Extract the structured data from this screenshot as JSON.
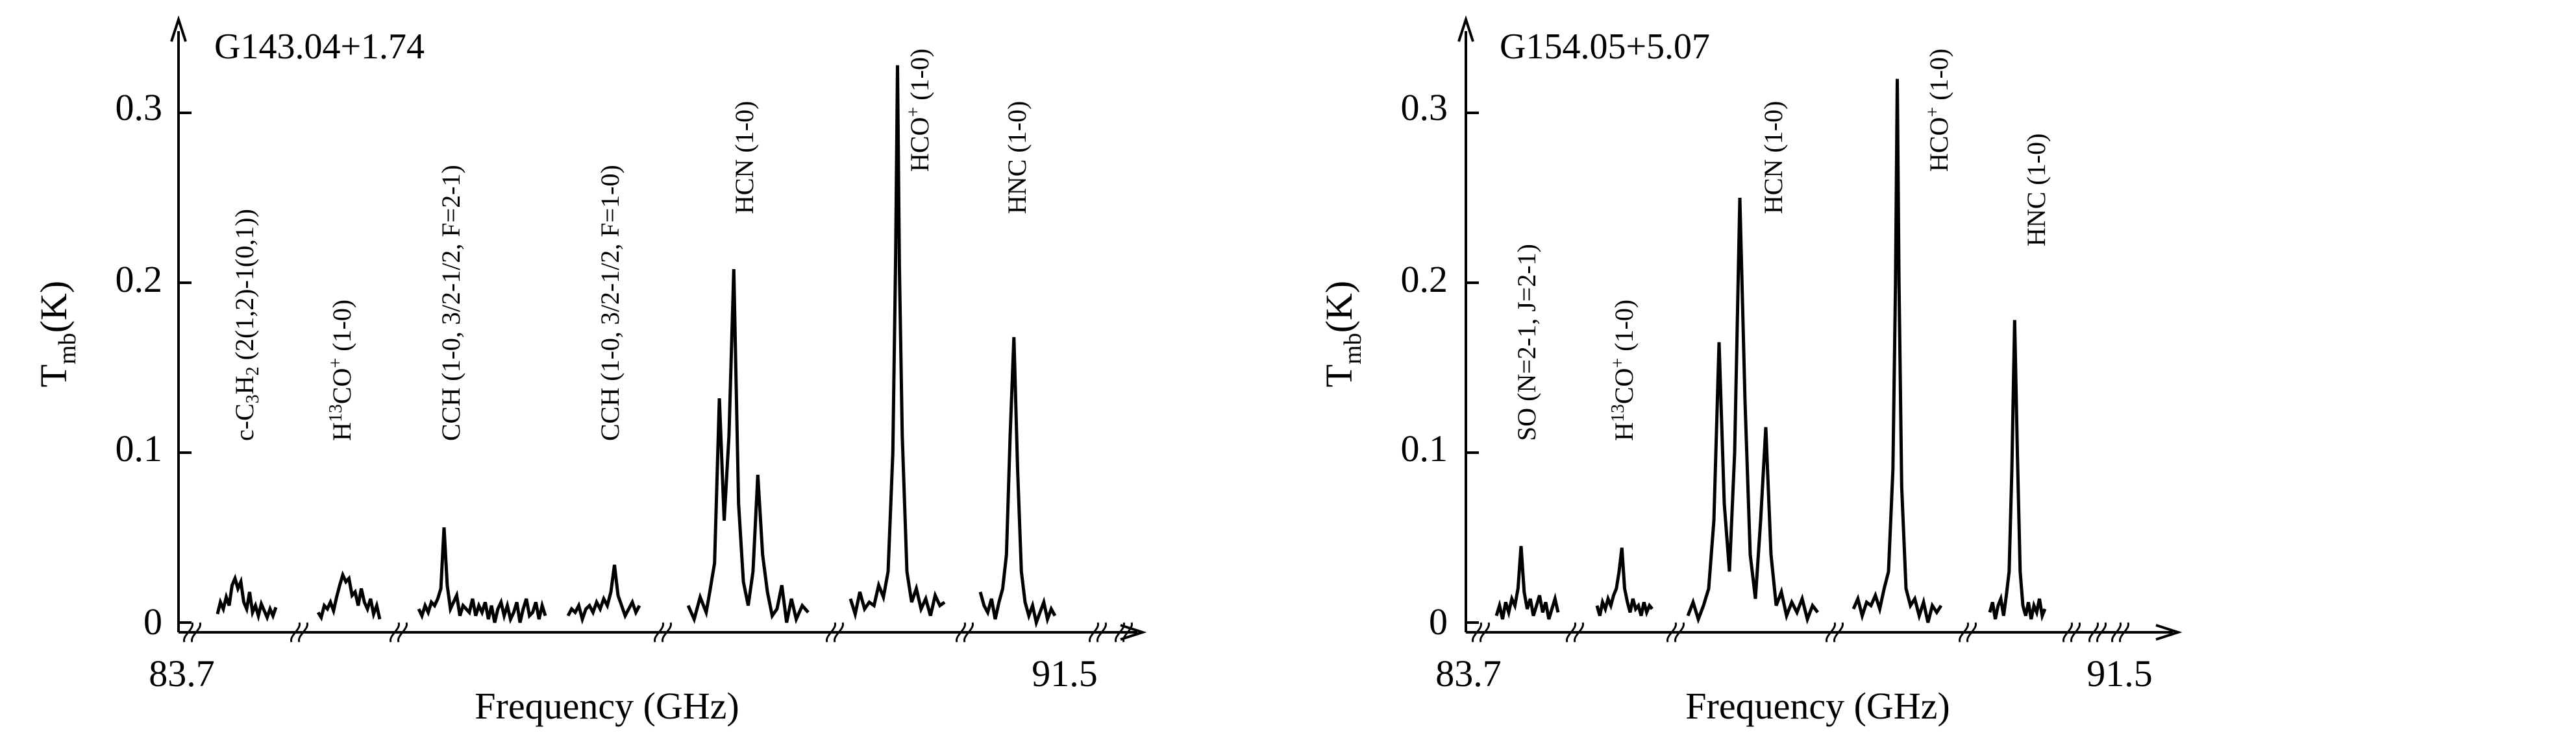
{
  "colors": {
    "line": "#000000",
    "background": "#ffffff"
  },
  "chart_data": [
    {
      "type": "line",
      "title": "G143.04+1.74",
      "xlabel": "Frequency (GHz)",
      "ylabel": {
        "main": "T",
        "sub": "mb",
        "unit": "(K)"
      },
      "xtick_labels": [
        "83.7",
        "91.5"
      ],
      "yticks": [
        0,
        0.1,
        0.2,
        0.3
      ],
      "ytick_labels": [
        "0",
        "0.1",
        "0.2",
        "0.3"
      ],
      "ylim": [
        -0.007,
        0.345
      ],
      "grid": false,
      "axis_breaks": 8,
      "segments": [
        {
          "x": [
            0.0,
            0.05,
            0.1,
            0.15,
            0.2,
            0.25,
            0.3,
            0.35,
            0.4,
            0.45,
            0.5,
            0.55,
            0.6,
            0.65,
            0.7,
            0.75,
            0.8,
            0.85,
            0.9,
            0.95,
            1.0
          ],
          "y": [
            0.005,
            0.012,
            0.008,
            0.015,
            0.01,
            0.022,
            0.026,
            0.02,
            0.024,
            0.012,
            0.008,
            0.018,
            0.006,
            0.01,
            0.004,
            0.011,
            0.007,
            0.003,
            0.008,
            0.004,
            0.009
          ]
        },
        {
          "x": [
            0.0,
            0.05,
            0.1,
            0.15,
            0.2,
            0.25,
            0.3,
            0.35,
            0.4,
            0.45,
            0.5,
            0.55,
            0.6,
            0.65,
            0.7,
            0.75,
            0.8,
            0.85,
            0.9,
            0.95,
            1.0
          ],
          "y": [
            0.006,
            0.003,
            0.01,
            0.008,
            0.012,
            0.007,
            0.015,
            0.022,
            0.028,
            0.024,
            0.026,
            0.016,
            0.018,
            0.01,
            0.02,
            0.012,
            0.008,
            0.014,
            0.005,
            0.01,
            0.002
          ]
        },
        {
          "x": [
            0.0,
            0.025,
            0.05,
            0.075,
            0.1,
            0.125,
            0.15,
            0.175,
            0.2,
            0.225,
            0.25,
            0.275,
            0.3,
            0.325,
            0.35,
            0.375,
            0.4,
            0.425,
            0.45,
            0.475,
            0.5,
            0.525,
            0.55,
            0.575,
            0.6,
            0.625,
            0.65,
            0.675,
            0.7,
            0.725,
            0.75,
            0.775,
            0.8,
            0.825,
            0.85,
            0.875,
            0.9,
            0.925,
            0.95,
            0.975,
            1.0
          ],
          "y": [
            0.008,
            0.004,
            0.01,
            0.006,
            0.012,
            0.01,
            0.014,
            0.02,
            0.056,
            0.022,
            0.008,
            0.012,
            0.016,
            0.004,
            0.01,
            0.008,
            0.006,
            0.014,
            0.004,
            0.01,
            0.006,
            0.012,
            0.002,
            0.01,
            0.0,
            0.008,
            0.012,
            0.004,
            0.01,
            0.002,
            0.006,
            0.012,
            0.0,
            0.008,
            0.014,
            0.004,
            0.006,
            0.012,
            0.002,
            0.01,
            0.004
          ]
        },
        {
          "x": [
            0.0,
            0.05,
            0.1,
            0.15,
            0.2,
            0.25,
            0.3,
            0.35,
            0.4,
            0.45,
            0.5,
            0.55,
            0.6,
            0.65,
            0.7,
            0.75,
            0.8,
            0.85,
            0.9,
            0.95,
            1.0
          ],
          "y": [
            0.004,
            0.008,
            0.006,
            0.01,
            0.002,
            0.008,
            0.01,
            0.006,
            0.012,
            0.008,
            0.014,
            0.01,
            0.018,
            0.034,
            0.016,
            0.01,
            0.004,
            0.008,
            0.012,
            0.006,
            0.01
          ]
        },
        {
          "x": [
            0.0,
            0.05,
            0.1,
            0.15,
            0.18,
            0.22,
            0.26,
            0.3,
            0.34,
            0.38,
            0.42,
            0.46,
            0.5,
            0.54,
            0.58,
            0.62,
            0.66,
            0.7,
            0.74,
            0.78,
            0.82,
            0.86,
            0.9,
            0.95,
            1.0
          ],
          "y": [
            0.01,
            0.002,
            0.015,
            0.006,
            0.018,
            0.035,
            0.132,
            0.06,
            0.11,
            0.208,
            0.07,
            0.024,
            0.01,
            0.03,
            0.087,
            0.04,
            0.018,
            0.004,
            0.008,
            0.022,
            0.0,
            0.014,
            0.002,
            0.01,
            0.006
          ]
        },
        {
          "x": [
            0.0,
            0.05,
            0.1,
            0.15,
            0.2,
            0.25,
            0.3,
            0.35,
            0.4,
            0.45,
            0.48,
            0.5,
            0.52,
            0.55,
            0.6,
            0.65,
            0.7,
            0.75,
            0.8,
            0.85,
            0.9,
            0.95,
            1.0
          ],
          "y": [
            0.014,
            0.005,
            0.018,
            0.008,
            0.012,
            0.01,
            0.022,
            0.015,
            0.03,
            0.1,
            0.215,
            0.328,
            0.21,
            0.11,
            0.03,
            0.012,
            0.02,
            0.008,
            0.014,
            0.004,
            0.016,
            0.01,
            0.012
          ]
        },
        {
          "x": [
            0.0,
            0.05,
            0.1,
            0.15,
            0.2,
            0.25,
            0.3,
            0.35,
            0.4,
            0.45,
            0.5,
            0.55,
            0.6,
            0.65,
            0.7,
            0.75,
            0.8,
            0.85,
            0.9,
            0.95,
            1.0
          ],
          "y": [
            0.018,
            0.01,
            0.006,
            0.014,
            0.002,
            0.012,
            0.02,
            0.04,
            0.11,
            0.168,
            0.09,
            0.03,
            0.012,
            0.004,
            0.01,
            0.0,
            0.006,
            0.012,
            0.002,
            0.008,
            0.004
          ]
        }
      ],
      "line_labels": [
        "c-C3H2 (2(1,2)-1(0,1))",
        "H13CO+ (1-0)",
        "CCH (1-0, 3/2-1/2, F=2-1)",
        "CCH (1-0, 3/2-1/2, F=1-0)",
        "HCN (1-0)",
        "HCO+ (1-0)",
        "HNC (1-0)"
      ]
    },
    {
      "type": "line",
      "title": "G154.05+5.07",
      "xlabel": "Frequency (GHz)",
      "ylabel": {
        "main": "T",
        "sub": "mb",
        "unit": "(K)"
      },
      "xtick_labels": [
        "83.7",
        "91.5"
      ],
      "yticks": [
        0,
        0.1,
        0.2,
        0.3
      ],
      "ytick_labels": [
        "0",
        "0.1",
        "0.2",
        "0.3"
      ],
      "ylim": [
        -0.007,
        0.345
      ],
      "grid": false,
      "axis_breaks": 8,
      "segments": [
        {
          "x": [
            0.0,
            0.05,
            0.1,
            0.15,
            0.2,
            0.25,
            0.3,
            0.35,
            0.4,
            0.45,
            0.5,
            0.55,
            0.6,
            0.65,
            0.7,
            0.75,
            0.8,
            0.85,
            0.9,
            0.95,
            1.0
          ],
          "y": [
            0.004,
            0.01,
            0.002,
            0.012,
            0.006,
            0.014,
            0.01,
            0.02,
            0.045,
            0.018,
            0.008,
            0.014,
            0.004,
            0.01,
            0.016,
            0.006,
            0.012,
            0.002,
            0.008,
            0.014,
            0.006
          ]
        },
        {
          "x": [
            0.0,
            0.05,
            0.1,
            0.15,
            0.2,
            0.25,
            0.3,
            0.35,
            0.4,
            0.45,
            0.5,
            0.55,
            0.6,
            0.65,
            0.7,
            0.75,
            0.8,
            0.85,
            0.9,
            0.95,
            1.0
          ],
          "y": [
            0.01,
            0.004,
            0.012,
            0.008,
            0.014,
            0.01,
            0.016,
            0.02,
            0.03,
            0.044,
            0.02,
            0.012,
            0.006,
            0.014,
            0.008,
            0.01,
            0.004,
            0.012,
            0.006,
            0.01,
            0.008
          ]
        },
        {
          "x": [
            0.0,
            0.04,
            0.08,
            0.12,
            0.16,
            0.2,
            0.24,
            0.28,
            0.32,
            0.36,
            0.4,
            0.44,
            0.48,
            0.52,
            0.56,
            0.6,
            0.64,
            0.68,
            0.72,
            0.76,
            0.8,
            0.84,
            0.88,
            0.92,
            0.96,
            1.0
          ],
          "y": [
            0.004,
            0.012,
            0.002,
            0.01,
            0.02,
            0.06,
            0.165,
            0.07,
            0.03,
            0.1,
            0.25,
            0.13,
            0.04,
            0.014,
            0.06,
            0.115,
            0.04,
            0.01,
            0.018,
            0.004,
            0.012,
            0.006,
            0.014,
            0.002,
            0.01,
            0.006
          ]
        },
        {
          "x": [
            0.0,
            0.05,
            0.1,
            0.15,
            0.2,
            0.25,
            0.3,
            0.35,
            0.4,
            0.45,
            0.48,
            0.5,
            0.52,
            0.55,
            0.6,
            0.65,
            0.7,
            0.75,
            0.8,
            0.85,
            0.9,
            0.95,
            1.0
          ],
          "y": [
            0.008,
            0.014,
            0.004,
            0.012,
            0.01,
            0.016,
            0.008,
            0.02,
            0.03,
            0.09,
            0.2,
            0.32,
            0.2,
            0.08,
            0.02,
            0.01,
            0.014,
            0.004,
            0.012,
            0.0,
            0.01,
            0.006,
            0.01
          ]
        },
        {
          "x": [
            0.0,
            0.05,
            0.1,
            0.15,
            0.2,
            0.25,
            0.3,
            0.35,
            0.4,
            0.45,
            0.5,
            0.55,
            0.6,
            0.65,
            0.7,
            0.75,
            0.8,
            0.85,
            0.9,
            0.95,
            1.0
          ],
          "y": [
            0.006,
            0.012,
            0.002,
            0.01,
            0.014,
            0.004,
            0.016,
            0.03,
            0.09,
            0.178,
            0.1,
            0.03,
            0.01,
            0.004,
            0.012,
            0.002,
            0.01,
            0.006,
            0.014,
            0.004,
            0.008
          ]
        }
      ],
      "line_labels": [
        "SO (N=2-1, J=2-1)",
        "H13CO+ (1-0)",
        "HCN (1-0)",
        "HCO+ (1-0)",
        "HNC (1-0)"
      ]
    }
  ]
}
